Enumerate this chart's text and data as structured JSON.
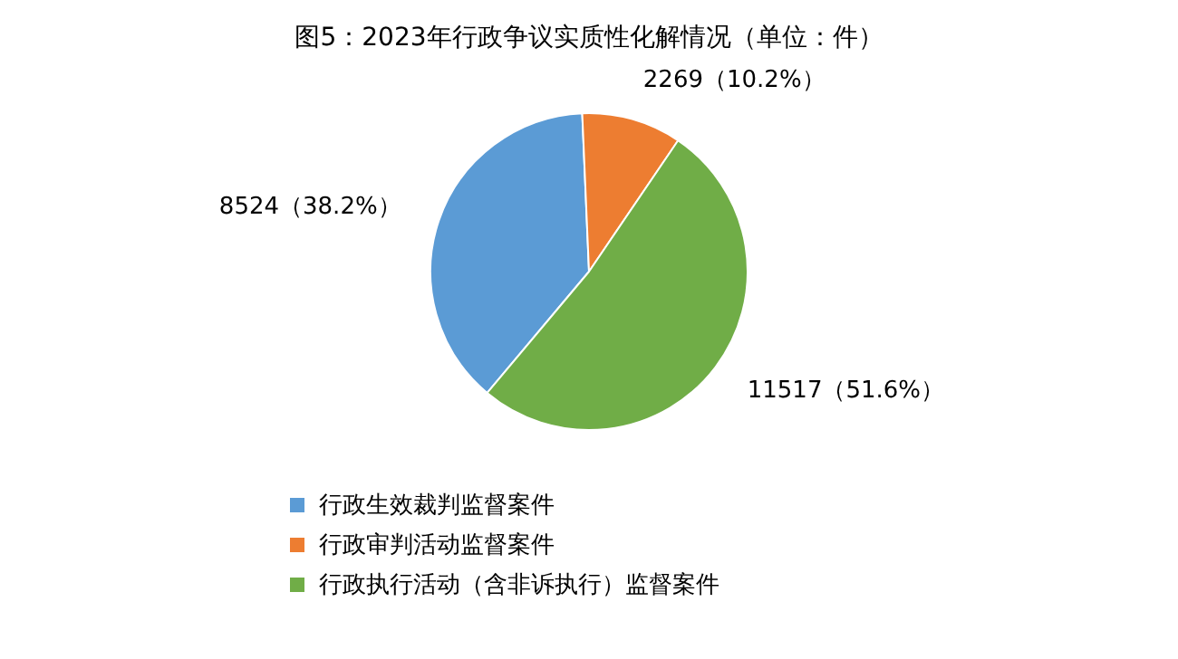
{
  "chart_data": {
    "type": "pie",
    "title": "图5：2023年行政争议实质性化解情况（单位：件）",
    "categories": [
      "行政生效裁判监督案件",
      "行政审判活动监督案件",
      "行政执行活动（含非诉执行）监督案件"
    ],
    "values": [
      8524,
      2269,
      11517
    ],
    "colors": [
      "#5b9bd5",
      "#ed7d31",
      "#70ad47"
    ],
    "value_labels": [
      "8524（38.2%）",
      "2269（10.2%）",
      "11517（51.6%）"
    ],
    "legend": "bottom"
  }
}
